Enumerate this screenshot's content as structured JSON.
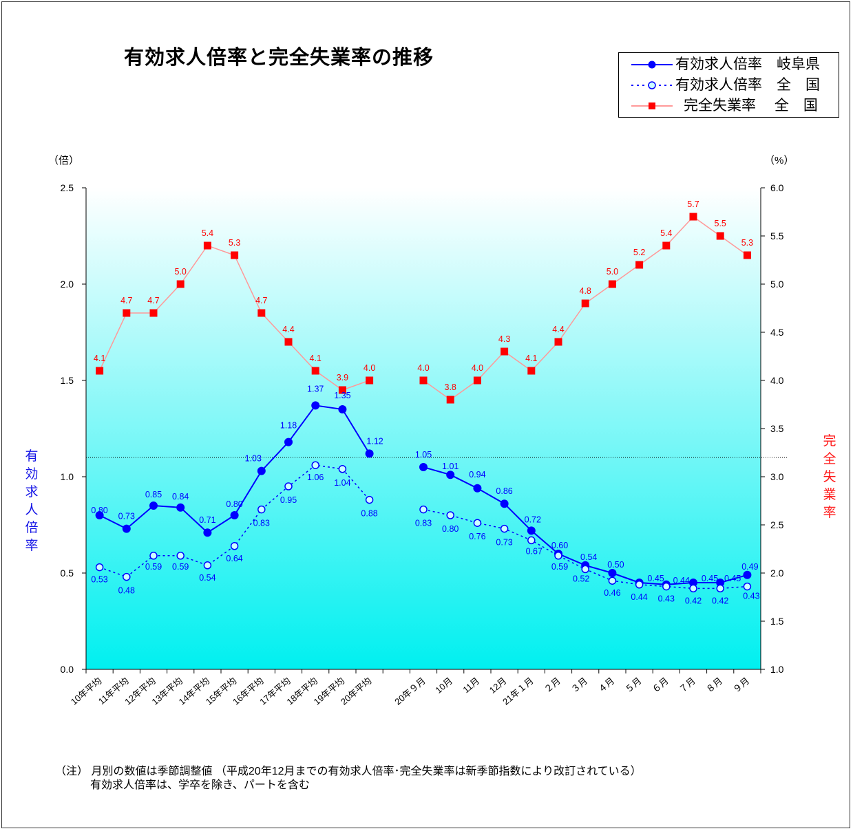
{
  "title": "有効求人倍率と完全失業率の推移",
  "legend": {
    "items": [
      {
        "label": "有効求人倍率　岐阜県",
        "color": "#0000ff",
        "style": "solid-filled-circle"
      },
      {
        "label": "有効求人倍率　全　国",
        "color": "#0000ff",
        "style": "dotted-hollow-circle"
      },
      {
        "label": "完全失業率　 全　国",
        "color": "#ff0000",
        "style": "light-line-square"
      }
    ]
  },
  "left_axis": {
    "unit": "（倍）",
    "title": "有効求人倍率",
    "ticks": [
      "0.0",
      "0.5",
      "1.0",
      "1.5",
      "2.0",
      "2.5"
    ]
  },
  "right_axis": {
    "unit": "（%）",
    "title": "完全失業率",
    "ticks": [
      "1.0",
      "1.5",
      "2.0",
      "2.5",
      "3.0",
      "3.5",
      "4.0",
      "4.5",
      "5.0",
      "5.5",
      "6.0"
    ]
  },
  "note": {
    "line1": "（注） 月別の数値は季節調整値 （平成20年12月までの有効求人倍率･完全失業率は新季節指数により改訂されている）",
    "line2": "有効求人倍率は、学卒を除き、パートを含む"
  },
  "colors": {
    "blue": "#0000ff",
    "red": "#ff0000",
    "gradient_top": "#ffffff",
    "gradient_bottom": "#00f0f0"
  },
  "chart_data": {
    "type": "line",
    "categories": [
      "10年平均",
      "11年平均",
      "12年平均",
      "13年平均",
      "14年平均",
      "15年平均",
      "16年平均",
      "17年平均",
      "18年平均",
      "19年平均",
      "20年平均",
      "",
      "20年９月",
      "10月",
      "11月",
      "12月",
      "21年１月",
      "２月",
      "３月",
      "４月",
      "５月",
      "６月",
      "７月",
      "８月",
      "９月"
    ],
    "series": [
      {
        "name": "有効求人倍率　岐阜県",
        "axis": "left",
        "values": [
          0.8,
          0.73,
          0.85,
          0.84,
          0.71,
          0.8,
          1.03,
          1.18,
          1.37,
          1.35,
          1.12,
          null,
          1.05,
          1.01,
          0.94,
          0.86,
          0.72,
          0.6,
          0.54,
          0.5,
          0.45,
          0.44,
          0.45,
          0.45,
          0.49
        ],
        "labels": [
          "0.80",
          "0.73",
          "0.85",
          "0.84",
          "0.71",
          "0.80",
          "1.03",
          "1.18",
          "1.37",
          "1.35",
          "1.12",
          "",
          "1.05",
          "1.01",
          "0.94",
          "0.86",
          "0.72",
          "0.60",
          "0.54",
          "0.50",
          "0.45",
          "0.44",
          "0.45",
          "0.45",
          "0.49"
        ]
      },
      {
        "name": "有効求人倍率　全　国",
        "axis": "left",
        "values": [
          0.53,
          0.48,
          0.59,
          0.59,
          0.54,
          0.64,
          0.83,
          0.95,
          1.06,
          1.04,
          0.88,
          null,
          0.83,
          0.8,
          0.76,
          0.73,
          0.67,
          0.59,
          0.52,
          0.46,
          0.44,
          0.43,
          0.42,
          0.42,
          0.43
        ],
        "labels": [
          "0.53",
          "0.48",
          "0.59",
          "0.59",
          "0.54",
          "0.64",
          "0.83",
          "0.95",
          "1.06",
          "1.04",
          "0.88",
          "",
          "0.83",
          "0.80",
          "0.76",
          "0.73",
          "0.67",
          "0.59",
          "0.52",
          "0.46",
          "0.44",
          "0.43",
          "0.42",
          "0.42",
          "0.43"
        ]
      },
      {
        "name": "完全失業率　 全　国",
        "axis": "right",
        "values": [
          4.1,
          4.7,
          4.7,
          5.0,
          5.4,
          5.3,
          4.7,
          4.4,
          4.1,
          3.9,
          4.0,
          null,
          4.0,
          3.8,
          4.0,
          4.3,
          4.1,
          4.4,
          4.8,
          5.0,
          5.2,
          5.4,
          5.7,
          5.5,
          5.3
        ],
        "labels": [
          "4.1",
          "4.7",
          "4.7",
          "5.0",
          "5.4",
          "5.3",
          "4.7",
          "4.4",
          "4.1",
          "3.9",
          "4.0",
          "",
          "4.0",
          "3.8",
          "4.0",
          "4.3",
          "4.1",
          "4.4",
          "4.8",
          "5.0",
          "5.2",
          "5.4",
          "5.7",
          "5.5",
          "5.3"
        ]
      }
    ],
    "ylim_left": [
      0.0,
      2.5
    ],
    "ylim_right": [
      1.0,
      6.0
    ],
    "reference_line_right": 3.2,
    "grid": false,
    "legend_position": "top-right"
  }
}
